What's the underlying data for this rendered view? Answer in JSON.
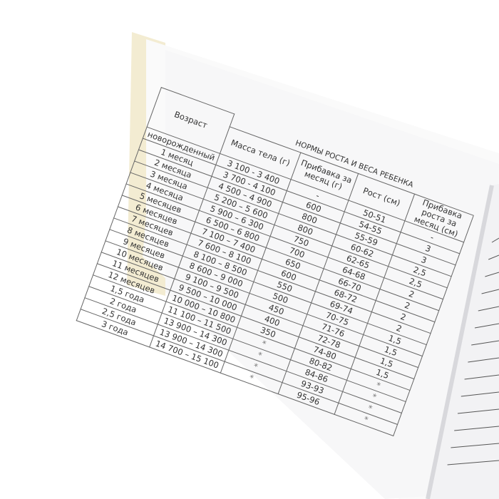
{
  "table": {
    "title": "НОРМЫ РОСТА И ВЕСА РЕБЕНКА",
    "headers": [
      "Возраст",
      "Масса тела (г)",
      "Прибавка за месяц (г)",
      "Рост (см)",
      "Прибавка роста за месяц (см)"
    ],
    "columns": {
      "age": [
        "новорожденный",
        "1 месяц",
        "2 месяца",
        "3 месяца",
        "4 месяца",
        "5 месяцев",
        "6 месяцев",
        "7 месяцев",
        "8 месяцев",
        "9 месяцев",
        "10 месяцев",
        "11 месяцев",
        "12 месяцев",
        "1,5 года",
        "2 года",
        "2,5 года",
        "3 года"
      ],
      "mass": [
        "3 100 - 3 400",
        "3 700 - 4 100",
        "4 500 – 4 900",
        "5 200 – 5 600",
        "5 900 – 6 300",
        "6 500 – 6 800",
        "7 100 – 7 400",
        "7 600 – 8 100",
        "8 100 – 8 500",
        "8 600 – 9 000",
        "9 100 – 9 500",
        "9 500 – 10 000",
        "10 000 – 10 800",
        "11 100 – 11 500",
        "13 900 – 14 300",
        "13 900 – 14 300",
        "14 700 – 15 100"
      ],
      "mass_gain": [
        "-",
        "600",
        "800",
        "800",
        "750",
        "700",
        "650",
        "600",
        "550",
        "500",
        "450",
        "400",
        "350",
        "*",
        "*",
        "*",
        "*"
      ],
      "height": [
        "50-51",
        "54-55",
        "55-59",
        "60-62",
        "62-65",
        "64-68",
        "66-70",
        "68-72",
        "69-74",
        "70-75",
        "71-76",
        "72-78",
        "74-80",
        "80-82",
        "84-86",
        "93-93",
        "95-96"
      ],
      "height_gain": [
        "-",
        "3",
        "3",
        "2,5",
        "2,5",
        "2",
        "2",
        "2",
        "2",
        "1,5",
        "1,5",
        "1,5",
        "1,5",
        "*",
        "*",
        "*",
        "*"
      ]
    }
  }
}
